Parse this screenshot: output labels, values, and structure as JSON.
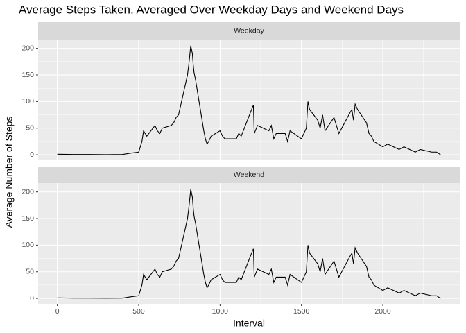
{
  "chart_data": {
    "type": "line",
    "title": "Average Steps Taken, Averaged Over Weekday Days and Weekend Days",
    "x_label": "Interval",
    "y_label": "Average Number of Steps",
    "xlim": [
      -117.75,
      2472.75
    ],
    "ylim": [
      -10.3,
      216.5
    ],
    "xticks": [
      0,
      500,
      1000,
      1500,
      2000
    ],
    "yticks": [
      0,
      50,
      100,
      150,
      200
    ],
    "grid": true,
    "color": "#000000",
    "x": [
      0,
      100,
      200,
      300,
      400,
      450,
      500,
      510,
      520,
      530,
      550,
      600,
      615,
      630,
      645,
      700,
      715,
      730,
      745,
      800,
      810,
      820,
      830,
      835,
      840,
      850,
      900,
      910,
      920,
      930,
      945,
      1000,
      1015,
      1030,
      1100,
      1115,
      1130,
      1200,
      1205,
      1210,
      1230,
      1300,
      1315,
      1330,
      1345,
      1400,
      1415,
      1430,
      1500,
      1530,
      1540,
      1550,
      1600,
      1615,
      1630,
      1645,
      1700,
      1715,
      1730,
      1800,
      1810,
      1820,
      1830,
      1845,
      1900,
      1915,
      1930,
      1945,
      2000,
      2030,
      2100,
      2130,
      2200,
      2230,
      2300,
      2330,
      2355
    ],
    "panels": [
      {
        "name": "Weekday",
        "values": [
          1,
          0.5,
          0.5,
          0.3,
          0.5,
          3,
          5,
          15,
          25,
          45,
          35,
          55,
          45,
          40,
          50,
          55,
          60,
          70,
          75,
          150,
          175,
          205,
          190,
          170,
          155,
          140,
          45,
          30,
          20,
          25,
          35,
          45,
          35,
          30,
          30,
          40,
          35,
          90,
          93,
          40,
          55,
          45,
          55,
          30,
          40,
          40,
          25,
          45,
          30,
          50,
          100,
          85,
          65,
          50,
          75,
          45,
          70,
          55,
          40,
          80,
          85,
          65,
          95,
          85,
          60,
          40,
          35,
          25,
          15,
          20,
          10,
          15,
          5,
          10,
          5,
          5,
          0
        ]
      },
      {
        "name": "Weekend",
        "values": [
          1,
          0.5,
          0.5,
          0.3,
          0.5,
          3,
          5,
          15,
          25,
          45,
          35,
          55,
          45,
          40,
          50,
          55,
          60,
          70,
          75,
          150,
          175,
          205,
          190,
          170,
          155,
          140,
          45,
          30,
          20,
          25,
          35,
          45,
          35,
          30,
          30,
          40,
          35,
          90,
          93,
          40,
          55,
          45,
          55,
          30,
          40,
          40,
          25,
          45,
          30,
          50,
          100,
          85,
          65,
          50,
          75,
          45,
          70,
          55,
          40,
          80,
          85,
          65,
          95,
          85,
          60,
          40,
          35,
          25,
          15,
          20,
          10,
          15,
          5,
          10,
          5,
          5,
          0
        ]
      }
    ]
  }
}
